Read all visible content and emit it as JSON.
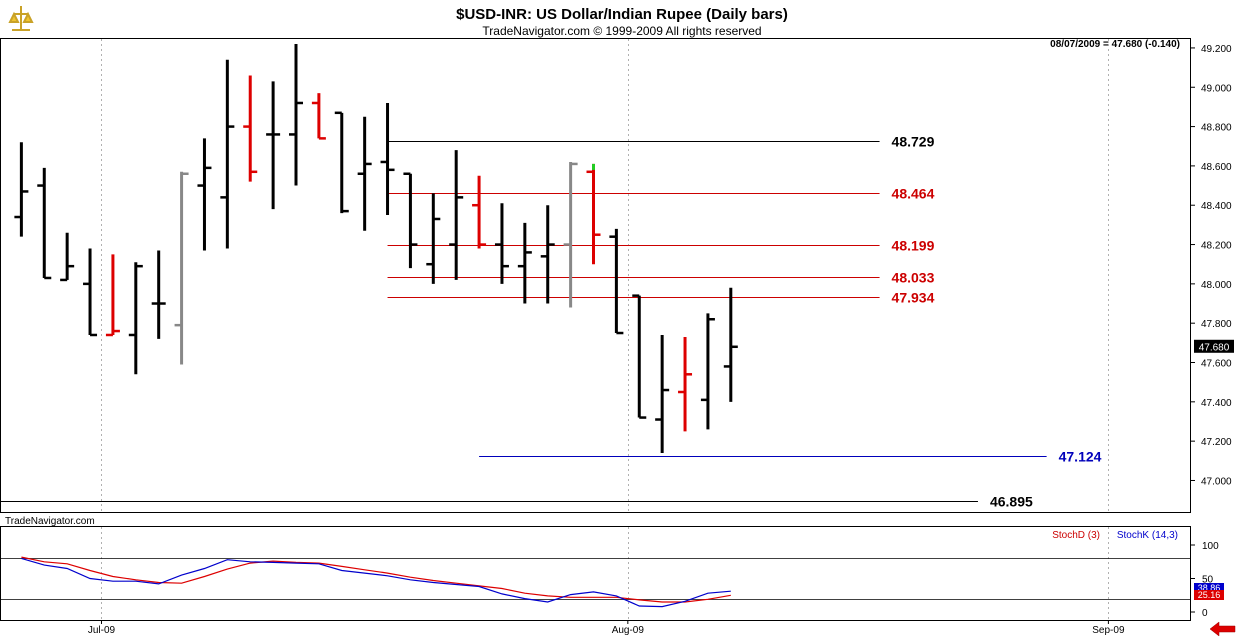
{
  "chart_data": [
    {
      "type": "bar",
      "subtype": "ohlc",
      "title": "$USD-INR:  US Dollar/Indian Rupee  (Daily bars)",
      "subtitle": "TradeNavigator.com © 1999-2009 All rights reserved",
      "watermark": "TradeNavigator.com",
      "last_quote": "08/07/2009 = 47.680 (-0.140)",
      "last_value_label": "47.680",
      "ylim": [
        46.86,
        49.22
      ],
      "yticks": [
        "49.200",
        "49.000",
        "48.800",
        "48.600",
        "48.400",
        "48.200",
        "48.000",
        "47.800",
        "47.600",
        "47.400",
        "47.200",
        "47.000"
      ],
      "yticks_values": [
        49.2,
        49.0,
        48.8,
        48.6,
        48.4,
        48.2,
        48.0,
        47.8,
        47.6,
        47.4,
        47.2,
        47.0
      ],
      "xlim": [
        0,
        52
      ],
      "x_labels": [
        {
          "label": "Jul-09",
          "x": 4.5
        },
        {
          "label": "Aug-09",
          "x": 27.5
        },
        {
          "label": "Sep-09",
          "x": 48.5
        }
      ],
      "bars": [
        {
          "x": 1,
          "o": 48.34,
          "h": 48.72,
          "l": 48.24,
          "c": 48.47,
          "color": "#000000"
        },
        {
          "x": 2,
          "o": 48.5,
          "h": 48.59,
          "l": 48.03,
          "c": 48.03,
          "color": "#000000"
        },
        {
          "x": 3,
          "o": 48.02,
          "h": 48.26,
          "l": 48.02,
          "c": 48.09,
          "color": "#000000"
        },
        {
          "x": 4,
          "o": 48.0,
          "h": 48.18,
          "l": 47.74,
          "c": 47.74,
          "color": "#000000"
        },
        {
          "x": 5,
          "o": 47.74,
          "h": 48.15,
          "l": 47.74,
          "c": 47.76,
          "color": "#dd0000"
        },
        {
          "x": 6,
          "o": 47.74,
          "h": 48.11,
          "l": 47.54,
          "c": 48.09,
          "color": "#000000"
        },
        {
          "x": 7,
          "o": 47.9,
          "h": 48.17,
          "l": 47.72,
          "c": 47.9,
          "color": "#000000"
        },
        {
          "x": 8,
          "o": 47.79,
          "h": 48.57,
          "l": 47.59,
          "c": 48.56,
          "color": "#888888"
        },
        {
          "x": 9,
          "o": 48.5,
          "h": 48.74,
          "l": 48.17,
          "c": 48.59,
          "color": "#000000"
        },
        {
          "x": 10,
          "o": 48.44,
          "h": 49.14,
          "l": 48.18,
          "c": 48.8,
          "color": "#000000"
        },
        {
          "x": 11,
          "o": 48.8,
          "h": 49.06,
          "l": 48.52,
          "c": 48.57,
          "color": "#dd0000"
        },
        {
          "x": 12,
          "o": 48.76,
          "h": 49.03,
          "l": 48.38,
          "c": 48.76,
          "color": "#000000"
        },
        {
          "x": 13,
          "o": 48.76,
          "h": 49.22,
          "l": 48.5,
          "c": 48.92,
          "color": "#000000"
        },
        {
          "x": 14,
          "o": 48.92,
          "h": 48.97,
          "l": 48.74,
          "c": 48.74,
          "color": "#dd0000"
        },
        {
          "x": 15,
          "o": 48.87,
          "h": 48.87,
          "l": 48.36,
          "c": 48.37,
          "color": "#000000"
        },
        {
          "x": 16,
          "o": 48.56,
          "h": 48.85,
          "l": 48.27,
          "c": 48.61,
          "color": "#000000"
        },
        {
          "x": 17,
          "o": 48.62,
          "h": 48.92,
          "l": 48.35,
          "c": 48.58,
          "color": "#000000"
        },
        {
          "x": 18,
          "o": 48.56,
          "h": 48.56,
          "l": 48.08,
          "c": 48.2,
          "color": "#000000"
        },
        {
          "x": 19,
          "o": 48.1,
          "h": 48.46,
          "l": 48.0,
          "c": 48.33,
          "color": "#000000"
        },
        {
          "x": 20,
          "o": 48.2,
          "h": 48.68,
          "l": 48.02,
          "c": 48.44,
          "color": "#000000"
        },
        {
          "x": 21,
          "o": 48.4,
          "h": 48.55,
          "l": 48.18,
          "c": 48.2,
          "color": "#dd0000"
        },
        {
          "x": 22,
          "o": 48.2,
          "h": 48.41,
          "l": 48.0,
          "c": 48.09,
          "color": "#000000"
        },
        {
          "x": 23,
          "o": 48.09,
          "h": 48.31,
          "l": 47.9,
          "c": 48.16,
          "color": "#000000"
        },
        {
          "x": 24,
          "o": 48.14,
          "h": 48.4,
          "l": 47.9,
          "c": 48.2,
          "color": "#000000"
        },
        {
          "x": 25,
          "o": 48.2,
          "h": 48.62,
          "l": 47.88,
          "c": 48.61,
          "color": "#888888"
        },
        {
          "x": 26,
          "o": 48.57,
          "h": 48.61,
          "l": 48.1,
          "c": 48.25,
          "color": "#dd0000",
          "hi_color": "#22cc22"
        },
        {
          "x": 27,
          "o": 48.24,
          "h": 48.28,
          "l": 47.75,
          "c": 47.75,
          "color": "#000000"
        },
        {
          "x": 28,
          "o": 47.94,
          "h": 47.94,
          "l": 47.32,
          "c": 47.32,
          "color": "#000000"
        },
        {
          "x": 29,
          "o": 47.31,
          "h": 47.74,
          "l": 47.14,
          "c": 47.46,
          "color": "#000000"
        },
        {
          "x": 30,
          "o": 47.45,
          "h": 47.73,
          "l": 47.25,
          "c": 47.54,
          "color": "#dd0000"
        },
        {
          "x": 31,
          "o": 47.41,
          "h": 47.85,
          "l": 47.26,
          "c": 47.82,
          "color": "#000000"
        },
        {
          "x": 32,
          "o": 47.58,
          "h": 47.98,
          "l": 47.4,
          "c": 47.68,
          "color": "#000000"
        }
      ],
      "hlines": [
        {
          "value": 48.729,
          "label": "48.729",
          "color": "#000000",
          "x_start": 17,
          "x_end": 38.5
        },
        {
          "value": 48.464,
          "label": "48.464",
          "color": "#cc0000",
          "x_start": 17,
          "x_end": 38.5
        },
        {
          "value": 48.199,
          "label": "48.199",
          "color": "#cc0000",
          "x_start": 17,
          "x_end": 38.5
        },
        {
          "value": 48.033,
          "label": "48.033",
          "color": "#cc0000",
          "x_start": 17,
          "x_end": 38.5
        },
        {
          "value": 47.934,
          "label": "47.934",
          "color": "#cc0000",
          "x_start": 17,
          "x_end": 38.5
        },
        {
          "value": 47.124,
          "label": "47.124",
          "color": "#0000bb",
          "x_start": 21,
          "x_end": 45.8
        },
        {
          "value": 46.895,
          "label": "46.895",
          "color": "#000000",
          "x_start": 0,
          "x_end": 42.8
        }
      ]
    },
    {
      "type": "line",
      "title": "",
      "ylim": [
        0,
        100
      ],
      "yticks": [
        "100",
        "50",
        "0"
      ],
      "yticks_values": [
        100,
        50,
        0
      ],
      "reference_lines": [
        80,
        20
      ],
      "series": [
        {
          "name": "StochD (3)",
          "color": "#dd0000",
          "x": [
            1,
            2,
            3,
            4,
            5,
            6,
            7,
            8,
            9,
            10,
            11,
            12,
            13,
            14,
            15,
            16,
            17,
            18,
            19,
            20,
            21,
            22,
            23,
            24,
            25,
            26,
            27,
            28,
            29,
            30,
            31,
            32
          ],
          "values": [
            82,
            75,
            72,
            62,
            53,
            48,
            44,
            43,
            53,
            64,
            73,
            76,
            74,
            73,
            68,
            63,
            58,
            52,
            47,
            43,
            39,
            35,
            28,
            24,
            22,
            22,
            22,
            18,
            15,
            15,
            19,
            25
          ]
        },
        {
          "name": "StochK (14,3)",
          "color": "#0000cc",
          "x": [
            1,
            2,
            3,
            4,
            5,
            6,
            7,
            8,
            9,
            10,
            11,
            12,
            13,
            14,
            15,
            16,
            17,
            18,
            19,
            20,
            21,
            22,
            23,
            24,
            25,
            26,
            27,
            28,
            29,
            30,
            31,
            32
          ],
          "values": [
            80,
            70,
            65,
            50,
            46,
            46,
            42,
            55,
            65,
            78,
            75,
            74,
            73,
            72,
            62,
            58,
            54,
            48,
            44,
            41,
            38,
            27,
            20,
            15,
            26,
            30,
            24,
            9,
            8,
            16,
            28,
            31
          ]
        }
      ],
      "last_values": [
        "38.86",
        "25.16"
      ]
    }
  ]
}
